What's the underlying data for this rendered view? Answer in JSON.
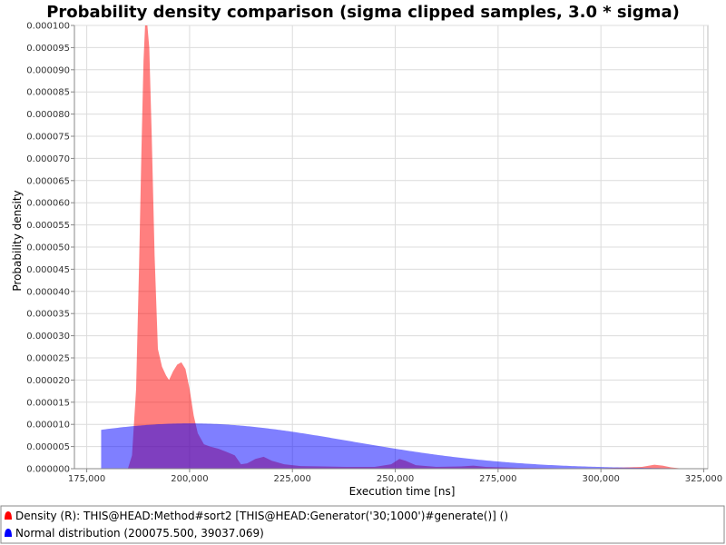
{
  "chart_data": {
    "type": "area",
    "title": "Probability density comparison (sigma clipped samples, 3.0 * sigma)",
    "xlabel": "Execution time [ns]",
    "ylabel": "Probability density",
    "xlim": [
      172000,
      326000
    ],
    "ylim": [
      0,
      0.0001
    ],
    "x_ticks": [
      175000,
      200000,
      225000,
      250000,
      275000,
      300000,
      325000
    ],
    "x_tick_labels": [
      "175,000",
      "200,000",
      "225,000",
      "250,000",
      "275,000",
      "300,000",
      "325,000"
    ],
    "y_ticks": [
      0,
      5e-06,
      1e-05,
      1.5e-05,
      2e-05,
      2.5e-05,
      3e-05,
      3.5e-05,
      4e-05,
      4.5e-05,
      5e-05,
      5.5e-05,
      6e-05,
      6.5e-05,
      7e-05,
      7.5e-05,
      8e-05,
      8.5e-05,
      9e-05,
      9.5e-05,
      0.0001
    ],
    "y_tick_labels": [
      "0.000000",
      "0.000005",
      "0.000010",
      "0.000015",
      "0.000020",
      "0.000025",
      "0.000030",
      "0.000035",
      "0.000040",
      "0.000045",
      "0.000050",
      "0.000055",
      "0.000060",
      "0.000065",
      "0.000070",
      "0.000075",
      "0.000080",
      "0.000085",
      "0.000090",
      "0.000095",
      "0.000100"
    ],
    "grid": true,
    "legend_position": "bottom",
    "series": [
      {
        "name": "Density (R): THIS@HEAD:Method#sort2 [THIS@HEAD:Generator('30;1000')#generate()] ()",
        "color": "#ff0000",
        "points": [
          [
            185000,
            0
          ],
          [
            186000,
            3e-06
          ],
          [
            187000,
            1.8e-05
          ],
          [
            187700,
            4.5e-05
          ],
          [
            188300,
            7.2e-05
          ],
          [
            188800,
            9.2e-05
          ],
          [
            189200,
            0.000101
          ],
          [
            189700,
            0.000103
          ],
          [
            190200,
            9.5e-05
          ],
          [
            190800,
            7.5e-05
          ],
          [
            191500,
            4.8e-05
          ],
          [
            192300,
            2.7e-05
          ],
          [
            193300,
            2.3e-05
          ],
          [
            194300,
            2.1e-05
          ],
          [
            195000,
            2e-05
          ],
          [
            196000,
            2.2e-05
          ],
          [
            197000,
            2.35e-05
          ],
          [
            198000,
            2.4e-05
          ],
          [
            199000,
            2.25e-05
          ],
          [
            200000,
            1.8e-05
          ],
          [
            201000,
            1.2e-05
          ],
          [
            202000,
            8e-06
          ],
          [
            203500,
            5.5e-06
          ],
          [
            205000,
            5e-06
          ],
          [
            207000,
            4.5e-06
          ],
          [
            209000,
            3.8e-06
          ],
          [
            211000,
            3e-06
          ],
          [
            212500,
            1e-06
          ],
          [
            214000,
            1.2e-06
          ],
          [
            216000,
            2.2e-06
          ],
          [
            218000,
            2.7e-06
          ],
          [
            220000,
            1.8e-06
          ],
          [
            223000,
            1e-06
          ],
          [
            227000,
            6e-07
          ],
          [
            232000,
            5e-07
          ],
          [
            238000,
            4e-07
          ],
          [
            245000,
            4e-07
          ],
          [
            249000,
            1e-06
          ],
          [
            251000,
            2.2e-06
          ],
          [
            252500,
            1.8e-06
          ],
          [
            255000,
            8e-07
          ],
          [
            260000,
            4e-07
          ],
          [
            266000,
            5e-07
          ],
          [
            269000,
            7e-07
          ],
          [
            272000,
            4e-07
          ],
          [
            280000,
            2e-07
          ],
          [
            290000,
            1e-07
          ],
          [
            300000,
            1e-07
          ],
          [
            310000,
            4e-07
          ],
          [
            313000,
            9e-07
          ],
          [
            315000,
            7e-07
          ],
          [
            317000,
            3e-07
          ],
          [
            320000,
            0
          ]
        ]
      },
      {
        "name": "Normal distribution (200075.500, 39037.069)",
        "color": "#0000ff",
        "mean": 200075.5,
        "sd": 39037.069,
        "x_range": [
          178500,
          320000
        ]
      }
    ]
  }
}
